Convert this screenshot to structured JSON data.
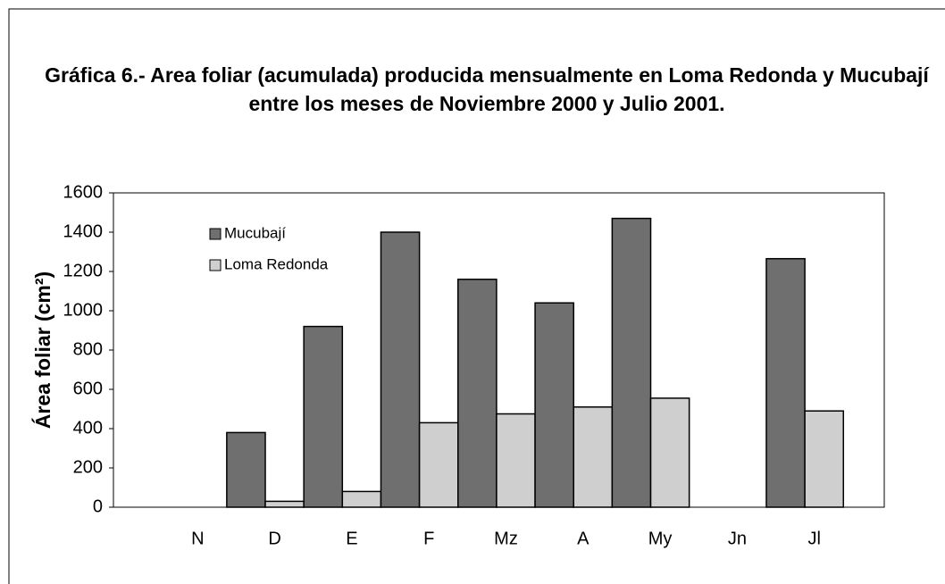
{
  "chart_data": {
    "type": "bar",
    "title": "Gráfica 6.- Area foliar (acumulada) producida mensualmente en Loma Redonda y Mucubají entre los meses de Noviembre 2000 y Julio 2001.",
    "y_label": "Área foliar (cm²)",
    "categories": [
      "N",
      "D",
      "E",
      "F",
      "Mz",
      "A",
      "My",
      "Jn",
      "Jl"
    ],
    "series": [
      {
        "name": "Mucubají",
        "color": "#6f6f6f",
        "values": [
          null,
          380,
          920,
          1400,
          1160,
          1040,
          1470,
          null,
          1265
        ]
      },
      {
        "name": "Loma Redonda",
        "color": "#cfcfcf",
        "values": [
          null,
          30,
          80,
          430,
          475,
          510,
          555,
          null,
          490
        ]
      }
    ],
    "ylim": [
      0,
      1600
    ],
    "yticks": [
      0,
      200,
      400,
      600,
      800,
      1000,
      1200,
      1400,
      1600
    ],
    "legend": "upper left",
    "grid": false
  }
}
